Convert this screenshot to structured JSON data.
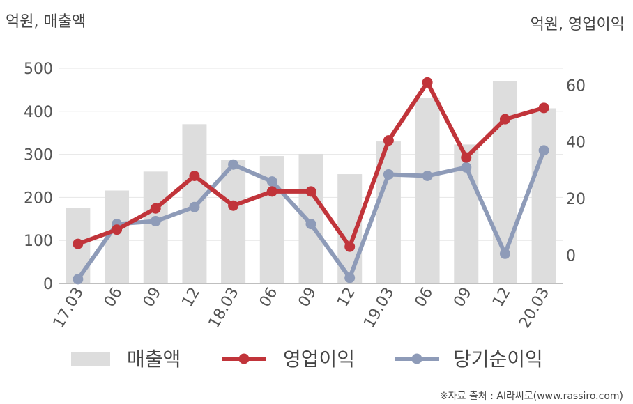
{
  "chart_data": {
    "type": "bar-line-combo",
    "left_unit_label": "억원, 매출액",
    "right_unit_label": "억원, 영업이익",
    "categories": [
      "17.03",
      "06",
      "09",
      "12",
      "18.03",
      "06",
      "09",
      "12",
      "19.03",
      "06",
      "09",
      "12",
      "20.03"
    ],
    "left_axis": {
      "ylim": [
        0,
        500
      ],
      "ticks": [
        "0",
        "100",
        "200",
        "300",
        "400",
        "500"
      ]
    },
    "right_axis": {
      "ylim": [
        -10,
        66
      ],
      "ticks": [
        "0",
        "20",
        "40",
        "60"
      ]
    },
    "grid": true,
    "legend_position": "bottom",
    "series": [
      {
        "name": "매출액",
        "type": "bar",
        "axis": "left",
        "color": "#dddddd",
        "values": [
          175,
          216,
          260,
          370,
          287,
          296,
          301,
          254,
          330,
          432,
          323,
          470,
          407
        ]
      },
      {
        "name": "영업이익",
        "type": "line",
        "axis": "right",
        "color": "#c1343a",
        "values": [
          4,
          9,
          16.5,
          28,
          17.5,
          22.5,
          22.5,
          3,
          40.5,
          61,
          34.5,
          48,
          52
        ]
      },
      {
        "name": "당기순이익",
        "type": "line",
        "axis": "right",
        "color": "#8e9bb8",
        "values": [
          -8.5,
          11,
          12,
          17,
          32,
          26,
          11,
          -8,
          28.5,
          28,
          31,
          0.5,
          37
        ]
      }
    ]
  },
  "source_note": "※자료 출처 : AI라씨로(www.rassiro.com)"
}
